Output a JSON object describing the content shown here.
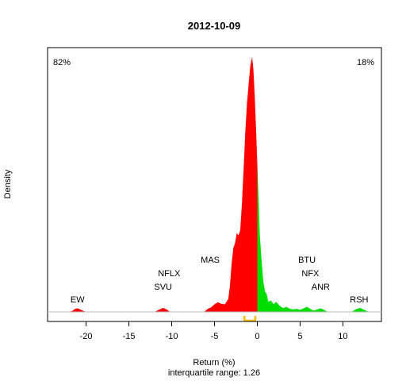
{
  "chart_data": {
    "type": "area",
    "title": "2012-10-09",
    "xlabel": "Return (%)",
    "ylabel": "Density",
    "subtitle": "interquartile range: 1.26",
    "xlim": [
      -24.5,
      14.5
    ],
    "ylim": [
      0,
      1
    ],
    "xticks": [
      -20,
      -15,
      -10,
      -5,
      0,
      5,
      10
    ],
    "xtick_labels": [
      "-20",
      "-15",
      "-10",
      "-5",
      "0",
      "5",
      "10"
    ],
    "pct_negative": "82%",
    "pct_positive": "18%",
    "colors": {
      "negative": "#ff0000",
      "positive": "#00dd00",
      "iqr": "#ffc000",
      "pct_negative": "#ff0000",
      "pct_positive": "#008800"
    },
    "iqr_range": [
      -1.5,
      -0.24
    ],
    "density": {
      "x": [
        -22,
        -21.6,
        -21.3,
        -21,
        -20.7,
        -20.3,
        -20,
        -12,
        -11.4,
        -11,
        -10.6,
        -10.2,
        -6.2,
        -5.8,
        -5.4,
        -5,
        -4.6,
        -4.2,
        -3.8,
        -3.4,
        -3.2,
        -3,
        -2.8,
        -2.6,
        -2.4,
        -2.2,
        -2,
        -1.8,
        -1.6,
        -1.4,
        -1.2,
        -1,
        -0.8,
        -0.6,
        -0.45,
        -0.3,
        -0.15,
        0,
        0.15,
        0.3,
        0.5,
        0.7,
        0.9,
        1.1,
        1.3,
        1.6,
        1.9,
        2.2,
        2.6,
        3.0,
        3.4,
        3.8,
        4.2,
        4.6,
        5.0,
        5.4,
        5.8,
        6.2,
        6.6,
        7.0,
        7.4,
        7.8,
        8.2,
        11.0,
        11.5,
        12.0,
        12.5,
        13.0
      ],
      "y": [
        0,
        0.004,
        0.012,
        0.014,
        0.01,
        0.004,
        0,
        0,
        0.01,
        0.016,
        0.01,
        0,
        0,
        0.012,
        0.018,
        0.03,
        0.038,
        0.032,
        0.03,
        0.05,
        0.1,
        0.19,
        0.25,
        0.27,
        0.31,
        0.3,
        0.32,
        0.42,
        0.56,
        0.71,
        0.82,
        0.9,
        0.97,
        1.0,
        0.95,
        0.85,
        0.72,
        0.58,
        0.45,
        0.3,
        0.2,
        0.12,
        0.08,
        0.07,
        0.04,
        0.045,
        0.03,
        0.04,
        0.025,
        0.015,
        0.02,
        0.012,
        0.01,
        0.012,
        0.008,
        0.014,
        0.02,
        0.012,
        0.005,
        0.01,
        0.014,
        0.008,
        0,
        0,
        0.01,
        0.016,
        0.008,
        0
      ]
    },
    "annotations": [
      {
        "text": "EW",
        "x": -21
      },
      {
        "text": "SVU",
        "x": -11
      },
      {
        "text": "NFLX",
        "x": -10.3
      },
      {
        "text": "MAS",
        "x": -5.5
      },
      {
        "text": "BTU",
        "x": 5.8
      },
      {
        "text": "NFX",
        "x": 6.2
      },
      {
        "text": "ANR",
        "x": 7.4
      },
      {
        "text": "RSH",
        "x": 11.9
      }
    ]
  }
}
